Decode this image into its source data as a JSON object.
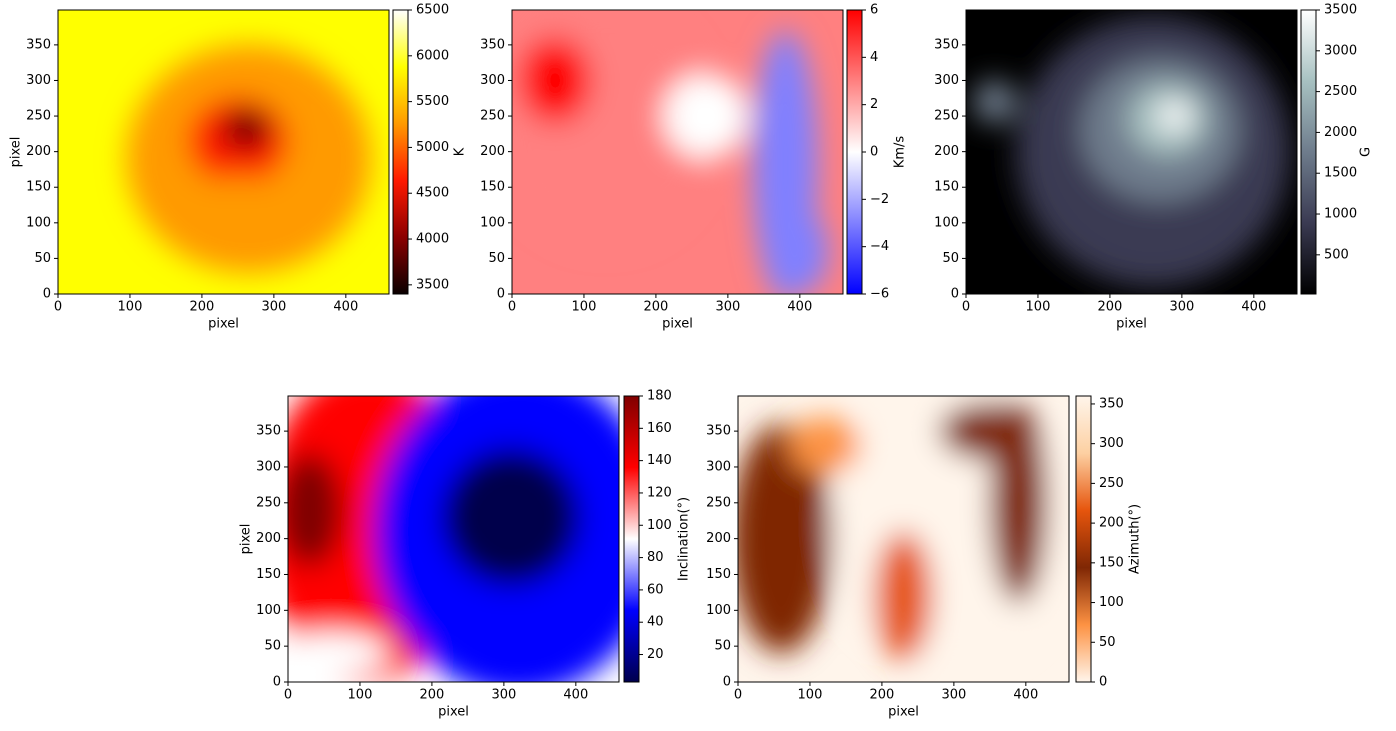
{
  "chart_data": [
    {
      "type": "heatmap",
      "xlabel": "pixel",
      "ylabel": "pixel",
      "xlim": [
        0,
        460
      ],
      "ylim": [
        0,
        399
      ],
      "xticks": [
        0,
        100,
        200,
        300,
        400
      ],
      "yticks": [
        0,
        50,
        100,
        150,
        200,
        250,
        300,
        350
      ],
      "colorbar": {
        "label": "K",
        "lim": [
          3400,
          6500
        ],
        "ticks": [
          3500,
          4000,
          4500,
          5000,
          5500,
          6000,
          6500
        ],
        "colormap": [
          "#0a0000",
          "#8b0000",
          "#ff1a00",
          "#ff9a00",
          "#ffff00",
          "#ffffff"
        ]
      }
    },
    {
      "type": "heatmap",
      "xlabel": "pixel",
      "xlim": [
        0,
        460
      ],
      "ylim": [
        0,
        399
      ],
      "xticks": [
        0,
        100,
        200,
        300,
        400
      ],
      "yticks": [
        0,
        50,
        100,
        150,
        200,
        250,
        300,
        350
      ],
      "colorbar": {
        "label": "Km/s",
        "lim": [
          -6,
          6
        ],
        "ticks": [
          {
            "value": -6,
            "label": "−6"
          },
          {
            "value": -4,
            "label": "−4"
          },
          {
            "value": -2,
            "label": "−2"
          },
          0,
          2,
          4,
          6
        ],
        "colormap": [
          "#0000ff",
          "#8080ff",
          "#ffffff",
          "#ff8080",
          "#ff0000"
        ]
      }
    },
    {
      "type": "heatmap",
      "xlabel": "pixel",
      "xlim": [
        0,
        460
      ],
      "ylim": [
        0,
        399
      ],
      "xticks": [
        0,
        100,
        200,
        300,
        400
      ],
      "yticks": [
        0,
        50,
        100,
        150,
        200,
        250,
        300,
        350
      ],
      "colorbar": {
        "label": "G",
        "lim": [
          20,
          3500
        ],
        "ticks": [
          500,
          1000,
          1500,
          2000,
          2500,
          3000,
          3500
        ],
        "colormap": [
          "#000000",
          "#3a3a52",
          "#6e7c8c",
          "#a7c1c1",
          "#ffffff"
        ]
      }
    },
    {
      "type": "heatmap",
      "xlabel": "pixel",
      "ylabel": "pixel",
      "xlim": [
        0,
        460
      ],
      "ylim": [
        0,
        399
      ],
      "xticks": [
        0,
        100,
        200,
        300,
        400
      ],
      "yticks": [
        0,
        50,
        100,
        150,
        200,
        250,
        300,
        350
      ],
      "colorbar": {
        "label": "Inclination(°)",
        "lim": [
          3,
          180
        ],
        "ticks": [
          20,
          40,
          60,
          80,
          100,
          120,
          140,
          160,
          180
        ],
        "colormap": [
          "#00004c",
          "#0000ff",
          "#ffffff",
          "#ff0000",
          "#800000"
        ]
      }
    },
    {
      "type": "heatmap",
      "xlabel": "pixel",
      "xlim": [
        0,
        460
      ],
      "ylim": [
        0,
        399
      ],
      "xticks": [
        0,
        100,
        200,
        300,
        400
      ],
      "yticks": [
        0,
        50,
        100,
        150,
        200,
        250,
        300,
        350
      ],
      "colorbar": {
        "label": "Azimuth(°)",
        "lim": [
          0,
          360
        ],
        "ticks": [
          0,
          50,
          100,
          150,
          200,
          250,
          300,
          350
        ],
        "colormap": [
          "#fff5eb",
          "#fd9243",
          "#7f2704",
          "#e6550d",
          "#fdd0a2",
          "#fff5eb"
        ]
      }
    }
  ]
}
